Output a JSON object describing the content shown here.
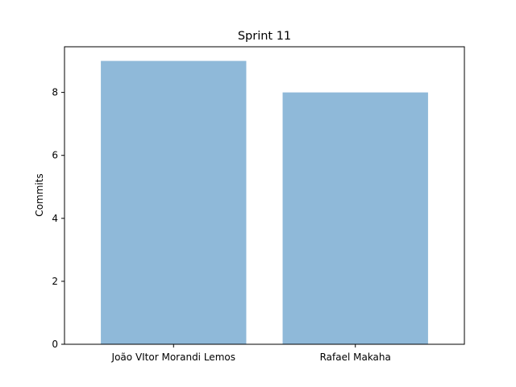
{
  "chart_data": {
    "type": "bar",
    "title": "Sprint 11",
    "xlabel": "",
    "ylabel": "Commits",
    "categories": [
      "João VItor Morandi Lemos",
      "Rafael Makaha"
    ],
    "values": [
      9,
      8
    ],
    "ylim": [
      0,
      9.45
    ],
    "yticks": [
      0,
      2,
      4,
      6,
      8
    ],
    "ytick_labels": [
      "0",
      "2",
      "4",
      "6",
      "8"
    ],
    "bar_color": "#8fb9d9",
    "grid": false,
    "legend": "none"
  }
}
